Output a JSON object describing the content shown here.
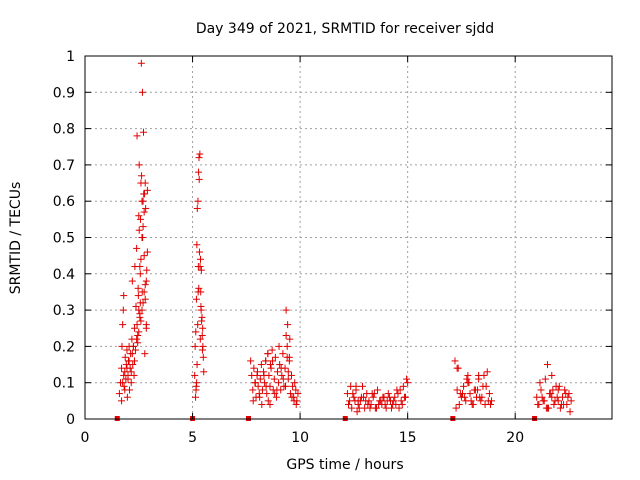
{
  "chart_data": {
    "type": "scatter",
    "title": "Day 349 of 2021, SRMTID for receiver sjdd",
    "xlabel": "GPS time / hours",
    "ylabel": "SRMTID / TECUs",
    "xlim": [
      0,
      24.5
    ],
    "ylim": [
      0,
      1
    ],
    "xticks": [
      0,
      5,
      10,
      15,
      20
    ],
    "yticks": [
      0,
      0.1,
      0.2,
      0.3,
      0.4,
      0.5,
      0.6,
      0.7,
      0.8,
      0.9,
      1
    ],
    "grid": true,
    "series": [
      {
        "name": "SRMTID",
        "color": "#e00000",
        "marker": "+",
        "x": [
          1.6,
          1.65,
          1.7,
          1.72,
          1.75,
          1.78,
          1.8,
          1.82,
          1.85,
          1.87,
          1.9,
          1.92,
          1.95,
          1.97,
          2.0,
          2.02,
          2.05,
          2.07,
          2.1,
          2.12,
          2.15,
          2.18,
          2.2,
          2.22,
          2.25,
          2.28,
          2.3,
          2.32,
          2.35,
          2.37,
          2.4,
          2.42,
          2.45,
          2.47,
          2.5,
          2.52,
          2.55,
          2.57,
          2.6,
          2.62,
          2.65,
          2.67,
          2.7,
          2.72,
          2.75,
          2.77,
          2.8,
          2.82,
          2.85,
          2.87,
          2.9,
          1.7,
          1.85,
          2.0,
          2.15,
          2.3,
          2.45,
          2.6,
          2.75,
          2.9,
          1.75,
          1.95,
          2.2,
          2.4,
          2.55,
          2.7,
          2.85,
          1.8,
          2.05,
          2.25,
          2.5,
          2.65,
          2.8,
          2.52,
          2.58,
          2.63,
          2.68,
          2.73,
          2.48,
          2.55,
          2.6,
          2.65,
          2.7,
          2.75,
          2.8,
          2.42,
          2.5,
          2.57,
          2.66,
          2.78,
          2.85,
          5.1,
          5.12,
          5.15,
          5.18,
          5.2,
          5.22,
          5.25,
          5.28,
          5.3,
          5.32,
          5.35,
          5.38,
          5.4,
          5.42,
          5.45,
          5.48,
          5.5,
          5.52,
          5.14,
          5.17,
          5.21,
          5.24,
          5.27,
          5.31,
          5.34,
          5.37,
          5.41,
          5.44,
          5.47,
          5.16,
          5.26,
          5.36,
          5.46,
          5.19,
          5.29,
          5.39,
          7.7,
          7.75,
          7.8,
          7.85,
          7.9,
          7.95,
          8.0,
          8.05,
          8.1,
          8.15,
          8.2,
          8.25,
          8.3,
          8.35,
          8.4,
          8.45,
          8.5,
          8.55,
          8.6,
          8.65,
          8.7,
          8.75,
          8.8,
          8.85,
          8.9,
          8.95,
          9.0,
          9.05,
          9.1,
          9.15,
          9.2,
          9.25,
          9.3,
          9.35,
          9.4,
          9.45,
          9.5,
          9.55,
          9.6,
          9.65,
          9.7,
          9.75,
          9.8,
          9.85,
          9.9,
          7.82,
          8.02,
          8.22,
          8.42,
          8.62,
          8.82,
          9.02,
          9.22,
          9.42,
          9.62,
          9.82,
          7.92,
          8.12,
          8.32,
          8.52,
          8.72,
          8.92,
          9.12,
          9.32,
          9.52,
          9.72,
          9.35,
          9.4,
          9.45,
          9.5,
          8.4,
          8.5,
          8.6,
          12.2,
          12.3,
          12.4,
          12.5,
          12.6,
          12.7,
          12.8,
          12.9,
          13.0,
          13.1,
          13.2,
          13.3,
          13.4,
          13.5,
          13.6,
          13.7,
          13.8,
          13.9,
          14.0,
          14.1,
          14.2,
          14.3,
          14.4,
          14.5,
          14.6,
          14.7,
          14.8,
          14.9,
          15.0,
          12.25,
          12.45,
          12.65,
          12.85,
          13.05,
          13.25,
          13.45,
          13.65,
          13.85,
          14.05,
          14.25,
          14.45,
          14.65,
          14.85,
          12.35,
          12.55,
          12.75,
          12.95,
          13.15,
          13.35,
          13.55,
          13.75,
          13.95,
          14.15,
          14.35,
          14.55,
          14.75,
          14.95,
          12.6,
          12.7,
          17.2,
          17.3,
          17.4,
          17.5,
          17.6,
          17.7,
          17.8,
          17.9,
          18.0,
          18.1,
          18.2,
          18.3,
          18.4,
          18.5,
          18.6,
          18.7,
          18.8,
          18.9,
          17.25,
          17.45,
          17.65,
          17.85,
          18.05,
          18.25,
          18.45,
          18.65,
          18.85,
          17.35,
          17.55,
          17.75,
          17.95,
          18.15,
          18.35,
          18.55,
          18.75,
          17.3,
          17.8,
          18.3,
          21.0,
          21.1,
          21.2,
          21.3,
          21.4,
          21.5,
          21.6,
          21.7,
          21.8,
          21.9,
          22.0,
          22.1,
          22.2,
          22.3,
          22.4,
          22.5,
          22.6,
          21.05,
          21.25,
          21.45,
          21.65,
          21.85,
          22.05,
          22.25,
          22.45,
          21.15,
          21.35,
          21.55,
          21.75,
          21.95,
          22.15,
          22.35,
          22.55,
          21.5,
          21.7,
          22.0
        ],
        "y": [
          0.07,
          0.1,
          0.14,
          0.2,
          0.26,
          0.3,
          0.34,
          0.09,
          0.13,
          0.17,
          0.11,
          0.15,
          0.19,
          0.06,
          0.12,
          0.16,
          0.2,
          0.08,
          0.14,
          0.18,
          0.1,
          0.22,
          0.38,
          0.15,
          0.2,
          0.12,
          0.25,
          0.42,
          0.19,
          0.31,
          0.47,
          0.78,
          0.23,
          0.36,
          0.56,
          0.7,
          0.29,
          0.4,
          0.65,
          0.98,
          0.5,
          0.9,
          0.6,
          0.79,
          0.45,
          0.62,
          0.33,
          0.58,
          0.25,
          0.41,
          0.63,
          0.05,
          0.08,
          0.11,
          0.13,
          0.16,
          0.21,
          0.27,
          0.35,
          0.46,
          0.1,
          0.14,
          0.18,
          0.22,
          0.28,
          0.32,
          0.38,
          0.12,
          0.16,
          0.2,
          0.24,
          0.3,
          0.37,
          0.52,
          0.55,
          0.67,
          0.5,
          0.62,
          0.34,
          0.42,
          0.44,
          0.6,
          0.53,
          0.57,
          0.65,
          0.26,
          0.3,
          0.32,
          0.35,
          0.18,
          0.26,
          0.12,
          0.2,
          0.24,
          0.33,
          0.48,
          0.58,
          0.6,
          0.68,
          0.72,
          0.46,
          0.42,
          0.35,
          0.3,
          0.27,
          0.23,
          0.2,
          0.17,
          0.13,
          0.06,
          0.09,
          0.15,
          0.26,
          0.42,
          0.66,
          0.73,
          0.44,
          0.41,
          0.28,
          0.25,
          0.08,
          0.35,
          0.22,
          0.19,
          0.1,
          0.36,
          0.31,
          0.16,
          0.12,
          0.08,
          0.14,
          0.1,
          0.06,
          0.12,
          0.09,
          0.07,
          0.11,
          0.15,
          0.08,
          0.13,
          0.1,
          0.16,
          0.07,
          0.18,
          0.12,
          0.09,
          0.14,
          0.19,
          0.08,
          0.11,
          0.17,
          0.06,
          0.13,
          0.1,
          0.15,
          0.08,
          0.12,
          0.18,
          0.09,
          0.14,
          0.3,
          0.2,
          0.11,
          0.16,
          0.07,
          0.12,
          0.09,
          0.06,
          0.1,
          0.08,
          0.05,
          0.07,
          0.05,
          0.13,
          0.04,
          0.09,
          0.15,
          0.07,
          0.2,
          0.11,
          0.26,
          0.06,
          0.04,
          0.1,
          0.06,
          0.12,
          0.05,
          0.16,
          0.08,
          0.14,
          0.09,
          0.22,
          0.05,
          0.23,
          0.17,
          0.13,
          0.17,
          0.16,
          0.18,
          0.04,
          0.07,
          0.05,
          0.03,
          0.06,
          0.08,
          0.04,
          0.05,
          0.09,
          0.03,
          0.07,
          0.05,
          0.04,
          0.06,
          0.03,
          0.08,
          0.05,
          0.04,
          0.06,
          0.03,
          0.07,
          0.05,
          0.04,
          0.06,
          0.08,
          0.03,
          0.05,
          0.09,
          0.06,
          0.1,
          0.04,
          0.07,
          0.02,
          0.06,
          0.05,
          0.03,
          0.07,
          0.04,
          0.06,
          0.05,
          0.03,
          0.04,
          0.08,
          0.06,
          0.09,
          0.05,
          0.03,
          0.06,
          0.04,
          0.07,
          0.03,
          0.05,
          0.04,
          0.06,
          0.05,
          0.07,
          0.04,
          0.11,
          0.09,
          0.05,
          0.16,
          0.08,
          0.04,
          0.06,
          0.09,
          0.05,
          0.12,
          0.07,
          0.04,
          0.08,
          0.06,
          0.11,
          0.05,
          0.09,
          0.04,
          0.13,
          0.07,
          0.05,
          0.03,
          0.07,
          0.06,
          0.1,
          0.04,
          0.08,
          0.06,
          0.09,
          0.04,
          0.14,
          0.07,
          0.11,
          0.05,
          0.08,
          0.06,
          0.12,
          0.05,
          0.14,
          0.1,
          0.12,
          0.06,
          0.04,
          0.08,
          0.05,
          0.11,
          0.03,
          0.07,
          0.06,
          0.04,
          0.09,
          0.05,
          0.03,
          0.06,
          0.08,
          0.04,
          0.07,
          0.05,
          0.04,
          0.06,
          0.03,
          0.07,
          0.05,
          0.09,
          0.04,
          0.06,
          0.1,
          0.05,
          0.03,
          0.08,
          0.06,
          0.04,
          0.07,
          0.02,
          0.15,
          0.12,
          0.08
        ]
      }
    ],
    "baseline_markers_x": [
      1.5,
      5.0,
      7.6,
      12.1,
      17.1,
      20.9
    ]
  }
}
